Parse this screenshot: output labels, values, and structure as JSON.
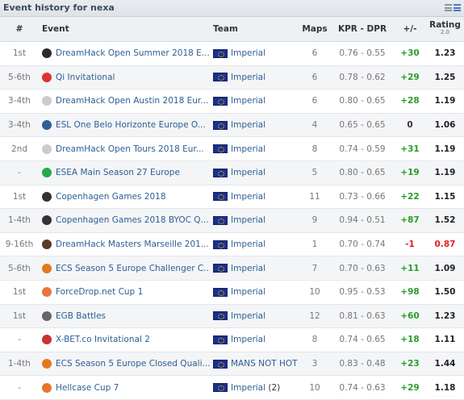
{
  "header": {
    "title": "Event history for nexa"
  },
  "columns": {
    "place": "#",
    "event": "Event",
    "team": "Team",
    "maps": "Maps",
    "kpr_dpr": "KPR - DPR",
    "plus_minus": "+/-",
    "rating": "Rating",
    "rating_version": "2.0"
  },
  "rows": [
    {
      "place": "1st",
      "event": "DreamHack Open Summer 2018 E...",
      "icon": "dreamhack-open-logo-icon",
      "icon_color": "#2b2b2b",
      "team": "Imperial",
      "team_suffix": "",
      "maps": "6",
      "kpr_dpr": "0.76 - 0.55",
      "diff": "+30",
      "rating": "1.23"
    },
    {
      "place": "5-6th",
      "event": "Qi Invitational",
      "icon": "qi-logo-icon",
      "icon_color": "#d33",
      "team": "Imperial",
      "team_suffix": "",
      "maps": "6",
      "kpr_dpr": "0.78 - 0.62",
      "diff": "+29",
      "rating": "1.25"
    },
    {
      "place": "3-4th",
      "event": "DreamHack Open Austin 2018 Eur...",
      "icon": "question-mark-icon",
      "icon_color": "#ccc",
      "team": "Imperial",
      "team_suffix": "",
      "maps": "6",
      "kpr_dpr": "0.80 - 0.65",
      "diff": "+28",
      "rating": "1.19"
    },
    {
      "place": "3-4th",
      "event": "ESL One Belo Horizonte Europe O...",
      "icon": "esl-logo-icon",
      "icon_color": "#2d5f93",
      "team": "Imperial",
      "team_suffix": "",
      "maps": "4",
      "kpr_dpr": "0.65 - 0.65",
      "diff": "0",
      "rating": "1.06"
    },
    {
      "place": "2nd",
      "event": "DreamHack Open Tours 2018 Eur...",
      "icon": "question-mark-icon",
      "icon_color": "#ccc",
      "team": "Imperial",
      "team_suffix": "",
      "maps": "8",
      "kpr_dpr": "0.74 - 0.59",
      "diff": "+31",
      "rating": "1.19"
    },
    {
      "place": "-",
      "event": "ESEA Main Season 27 Europe",
      "icon": "esea-star-icon",
      "icon_color": "#2aa84a",
      "team": "Imperial",
      "team_suffix": "",
      "maps": "5",
      "kpr_dpr": "0.80 - 0.65",
      "diff": "+19",
      "rating": "1.19"
    },
    {
      "place": "1st",
      "event": "Copenhagen Games 2018",
      "icon": "copenhagen-games-logo-icon",
      "icon_color": "#333",
      "team": "Imperial",
      "team_suffix": "",
      "maps": "11",
      "kpr_dpr": "0.73 - 0.66",
      "diff": "+22",
      "rating": "1.15"
    },
    {
      "place": "1-4th",
      "event": "Copenhagen Games 2018 BYOC Q...",
      "icon": "copenhagen-games-logo-icon",
      "icon_color": "#333",
      "team": "Imperial",
      "team_suffix": "",
      "maps": "9",
      "kpr_dpr": "0.94 - 0.51",
      "diff": "+87",
      "rating": "1.52"
    },
    {
      "place": "9-16th",
      "event": "DreamHack Masters Marseille 201...",
      "icon": "dreamhack-masters-logo-icon",
      "icon_color": "#5a3a2a",
      "team": "Imperial",
      "team_suffix": "",
      "maps": "1",
      "kpr_dpr": "0.70 - 0.74",
      "diff": "-1",
      "rating": "0.87"
    },
    {
      "place": "5-6th",
      "event": "ECS Season 5 Europe Challenger C...",
      "icon": "ecs-logo-icon",
      "icon_color": "#e07a1f",
      "team": "Imperial",
      "team_suffix": "",
      "maps": "7",
      "kpr_dpr": "0.70 - 0.63",
      "diff": "+11",
      "rating": "1.09"
    },
    {
      "place": "1st",
      "event": "ForceDrop.net Cup 1",
      "icon": "forcedrop-logo-icon",
      "icon_color": "#e8763a",
      "team": "Imperial",
      "team_suffix": "",
      "maps": "10",
      "kpr_dpr": "0.95 - 0.53",
      "diff": "+98",
      "rating": "1.50"
    },
    {
      "place": "1st",
      "event": "EGB Battles",
      "icon": "egb-logo-icon",
      "icon_color": "#666",
      "team": "Imperial",
      "team_suffix": "",
      "maps": "12",
      "kpr_dpr": "0.81 - 0.63",
      "diff": "+60",
      "rating": "1.23"
    },
    {
      "place": "-",
      "event": "X-BET.co Invitational 2",
      "icon": "xbet-logo-icon",
      "icon_color": "#c33",
      "team": "Imperial",
      "team_suffix": "",
      "maps": "8",
      "kpr_dpr": "0.74 - 0.65",
      "diff": "+18",
      "rating": "1.11"
    },
    {
      "place": "1-4th",
      "event": "ECS Season 5 Europe Closed Quali...",
      "icon": "ecs-logo-icon",
      "icon_color": "#e07a1f",
      "team": "MANS NOT HOT",
      "team_suffix": "",
      "maps": "3",
      "kpr_dpr": "0.83 - 0.48",
      "diff": "+23",
      "rating": "1.44"
    },
    {
      "place": "-",
      "event": "Hellcase Cup 7",
      "icon": "hellcase-logo-icon",
      "icon_color": "#e8762a",
      "team": "Imperial",
      "team_suffix": "(2)",
      "maps": "10",
      "kpr_dpr": "0.74 - 0.63",
      "diff": "+29",
      "rating": "1.18"
    }
  ]
}
